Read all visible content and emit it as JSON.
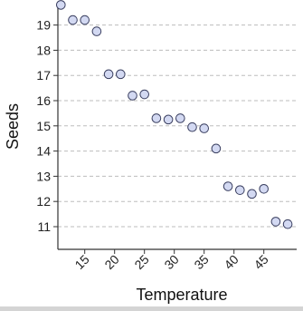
{
  "chart_data": {
    "type": "scatter",
    "xlabel": "Temperature",
    "ylabel": "Seeds",
    "xlim": [
      10.5,
      50.5
    ],
    "ylim": [
      10.1,
      19.85
    ],
    "x_ticks": [
      15,
      20,
      25,
      30,
      35,
      40,
      45
    ],
    "y_ticks": [
      11,
      12,
      13,
      14,
      15,
      16,
      17,
      18,
      19
    ],
    "grid": "horizontal-dashed",
    "x": [
      11,
      13,
      15,
      17,
      19,
      21,
      23,
      25,
      27,
      29,
      31,
      33,
      35,
      37,
      39,
      41,
      43,
      45,
      47,
      49
    ],
    "y": [
      19.8,
      19.2,
      19.2,
      18.75,
      17.05,
      17.05,
      16.2,
      16.25,
      15.3,
      15.25,
      15.3,
      14.95,
      14.9,
      14.1,
      12.6,
      12.45,
      12.3,
      12.5,
      11.2,
      11.1
    ],
    "colors": {
      "marker_fill": "#d3d9f2",
      "marker_stroke": "#3a3f60",
      "grid": "#bdbdbd",
      "axis": "#333333"
    }
  }
}
